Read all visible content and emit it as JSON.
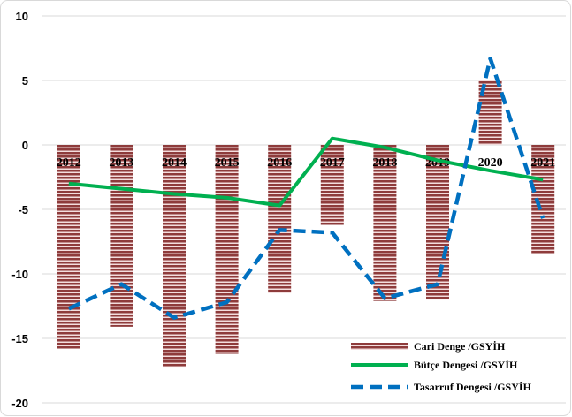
{
  "chart_data": {
    "type": "bar",
    "categories": [
      "2012",
      "2013",
      "2014",
      "2015",
      "2016",
      "2017",
      "2018",
      "2019",
      "2020",
      "2021"
    ],
    "series": [
      {
        "name": "Cari Denge /GSYİH",
        "type": "bar",
        "color": "#8E3B3B",
        "stripe_color": "#F3DDDD",
        "values": [
          -15.8,
          -14.1,
          -17.2,
          -16.2,
          -11.5,
          -6.2,
          -12.1,
          -12.0,
          5.0,
          -8.4
        ]
      },
      {
        "name": "Bütçe Dengesi /GSYİH",
        "type": "line",
        "color": "#00B050",
        "dashed": false,
        "values": [
          -3.0,
          -3.4,
          -3.8,
          -4.1,
          -4.7,
          0.5,
          -0.2,
          -1.2,
          -2.0,
          -2.7
        ]
      },
      {
        "name": "Tasarruf Dengesi /GSYİH",
        "type": "line",
        "color": "#0070C0",
        "dashed": true,
        "values": [
          -12.7,
          -10.8,
          -13.4,
          -12.2,
          -6.6,
          -6.8,
          -11.9,
          -10.8,
          6.7,
          -5.7
        ]
      }
    ],
    "ylim": [
      -20,
      10
    ],
    "yticks": [
      10,
      5,
      0,
      -5,
      -10,
      -15,
      -20
    ],
    "grid": true,
    "gridline_color": "#D9D9D9",
    "legend_position": "bottom-right"
  }
}
